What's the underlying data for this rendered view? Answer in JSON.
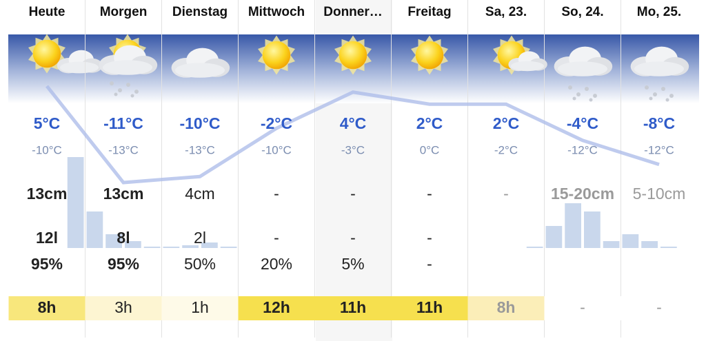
{
  "days": [
    {
      "name": "Heute",
      "max": "5°C",
      "min": "-10°C",
      "snow": "13cm",
      "precip": "12l",
      "probability": "95%",
      "sunshine": "8h"
    },
    {
      "name": "Morgen",
      "max": "-11°C",
      "min": "-13°C",
      "snow": "13cm",
      "precip": "8l",
      "probability": "95%",
      "sunshine": "3h"
    },
    {
      "name": "Dienstag",
      "max": "-10°C",
      "min": "-13°C",
      "snow": "4cm",
      "precip": "2l",
      "probability": "50%",
      "sunshine": "1h"
    },
    {
      "name": "Mittwoch",
      "max": "-2°C",
      "min": "-10°C",
      "snow": "-",
      "precip": "-",
      "probability": "20%",
      "sunshine": "12h"
    },
    {
      "name": "Donner…",
      "max": "4°C",
      "min": "-3°C",
      "snow": "-",
      "precip": "-",
      "probability": "5%",
      "sunshine": "11h"
    },
    {
      "name": "Freitag",
      "max": "2°C",
      "min": "0°C",
      "snow": "-",
      "precip": "-",
      "probability": "-",
      "sunshine": "11h"
    },
    {
      "name": "Sa, 23.",
      "max": "2°C",
      "min": "-2°C",
      "snow": "-",
      "sunshine": "8h"
    },
    {
      "name": "So, 24.",
      "max": "-4°C",
      "min": "-12°C",
      "snow": "15-20cm",
      "sunshine": "-"
    },
    {
      "name": "Mo, 25.",
      "max": "-8°C",
      "min": "-12°C",
      "snow": "5-10cm",
      "sunshine": "-"
    }
  ],
  "max_temps": [
    5,
    -11,
    -10,
    -2,
    4,
    2,
    2,
    -4,
    -8
  ],
  "precipitation_bars": [
    0,
    0,
    0,
    132,
    53,
    20,
    10,
    2,
    2,
    4,
    8,
    2,
    0,
    0,
    0,
    0,
    0,
    0,
    0,
    0,
    0,
    0,
    0,
    0,
    0,
    0,
    0,
    2,
    32,
    65,
    53,
    10,
    20,
    10,
    2,
    0
  ],
  "sunshine_colors": [
    "#f8e77c",
    "#fdf5d2",
    "#fefae8",
    "#f6e04e",
    "#f6e04e",
    "#f6e04e",
    "#fbeeb8",
    "#ffffff",
    "#ffffff"
  ]
}
